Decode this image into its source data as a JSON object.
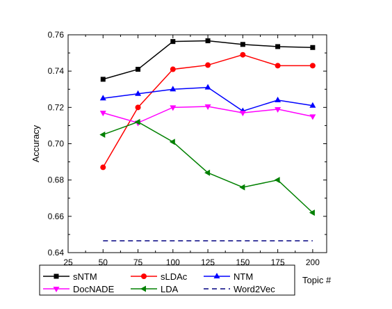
{
  "chart_data": {
    "type": "line",
    "title": "",
    "xlabel": "Topic #",
    "ylabel": "Accuracy",
    "xlim": [
      25,
      210
    ],
    "ylim": [
      0.64,
      0.76
    ],
    "xticks": [
      "25",
      "50",
      "75",
      "100",
      "125",
      "150",
      "175",
      "200"
    ],
    "yticks": [
      "0.64",
      "0.66",
      "0.68",
      "0.70",
      "0.72",
      "0.74",
      "0.76"
    ],
    "grid": false,
    "legend_position": "bottom",
    "x": [
      50,
      75,
      100,
      125,
      150,
      175,
      200
    ],
    "series": [
      {
        "name": "sNTM",
        "color": "#000000",
        "marker": "square",
        "dashed": false,
        "values": [
          0.7355,
          0.741,
          0.7563,
          0.7567,
          0.7547,
          0.7535,
          0.753
        ]
      },
      {
        "name": "sLDAc",
        "color": "#ff0000",
        "marker": "circle",
        "dashed": false,
        "values": [
          0.687,
          0.72,
          0.741,
          0.7433,
          0.749,
          0.743,
          0.743
        ]
      },
      {
        "name": "NTM",
        "color": "#0000ff",
        "marker": "triangle-up",
        "dashed": false,
        "values": [
          0.725,
          0.7275,
          0.73,
          0.731,
          0.718,
          0.724,
          0.721
        ]
      },
      {
        "name": "DocNADE",
        "color": "#ff00ff",
        "marker": "triangle-down",
        "dashed": false,
        "values": [
          0.717,
          0.7115,
          0.72,
          0.7205,
          0.717,
          0.719,
          0.715
        ]
      },
      {
        "name": "LDA",
        "color": "#008000",
        "marker": "triangle-left",
        "dashed": false,
        "values": [
          0.705,
          0.712,
          0.701,
          0.684,
          0.676,
          0.68,
          0.662
        ]
      },
      {
        "name": "Word2Vec",
        "color": "#000080",
        "marker": "none",
        "dashed": true,
        "values": [
          0.6465,
          0.6465,
          0.6465,
          0.6465,
          0.6465,
          0.6465,
          0.6465
        ]
      }
    ]
  }
}
